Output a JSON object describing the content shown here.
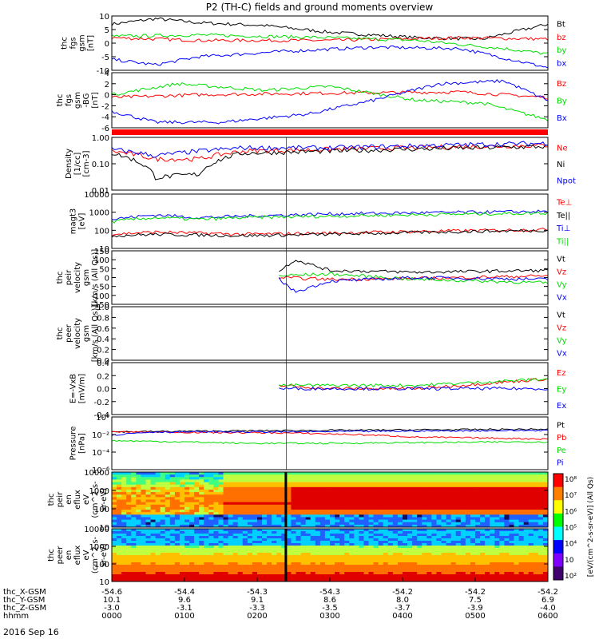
{
  "title": "P2 (TH-C) fields and ground moments overview",
  "date_label": "2016 Sep 16",
  "colors": {
    "black": "#000000",
    "red": "#ff0000",
    "green": "#00dd00",
    "blue": "#0000ff"
  },
  "chart_data": [
    {
      "id": "fgs",
      "type": "line",
      "ylabel": [
        "thc",
        "fgs",
        "gsm",
        "[nT]"
      ],
      "ylim": [
        -10,
        10
      ],
      "ticks": [
        "10",
        "5",
        "0",
        "-5",
        "-10"
      ],
      "tick_values": [
        10,
        5,
        0,
        -5,
        -10
      ],
      "log": false,
      "series": [
        {
          "name": "Bt",
          "color": "#000000",
          "trace": [
            [
              0,
              7
            ],
            [
              0.1,
              9
            ],
            [
              0.2,
              7.5
            ],
            [
              0.35,
              6.5
            ],
            [
              0.5,
              4
            ],
            [
              0.7,
              2
            ],
            [
              0.85,
              1.5
            ],
            [
              1,
              7
            ]
          ]
        },
        {
          "name": "bz",
          "color": "#ff0000",
          "trace": [
            [
              0,
              2
            ],
            [
              0.2,
              1
            ],
            [
              0.5,
              1
            ],
            [
              0.8,
              2
            ],
            [
              1,
              1.5
            ]
          ]
        },
        {
          "name": "by",
          "color": "#00dd00",
          "trace": [
            [
              0,
              2.5
            ],
            [
              0.2,
              3
            ],
            [
              0.5,
              2
            ],
            [
              0.7,
              1
            ],
            [
              0.9,
              -2
            ],
            [
              1,
              -4
            ]
          ]
        },
        {
          "name": "bx",
          "color": "#0000ff",
          "trace": [
            [
              0,
              -6
            ],
            [
              0.1,
              -8
            ],
            [
              0.2,
              -5
            ],
            [
              0.4,
              -3
            ],
            [
              0.6,
              -1.5
            ],
            [
              0.8,
              -2
            ],
            [
              1,
              -9
            ]
          ]
        }
      ]
    },
    {
      "id": "fgs2",
      "type": "line",
      "ylabel": [
        "thc",
        "fgs",
        "gsm",
        "-BG",
        "[nT]"
      ],
      "ylim": [
        -6,
        4
      ],
      "ticks": [
        "4",
        "2",
        "0",
        "-2",
        "-4",
        "-6"
      ],
      "tick_values": [
        4,
        2,
        0,
        -2,
        -4,
        -6
      ],
      "log": false,
      "series": [
        {
          "name": "Bz",
          "color": "#ff0000",
          "trace": [
            [
              0,
              -0.5
            ],
            [
              0.2,
              0
            ],
            [
              0.5,
              0.3
            ],
            [
              0.8,
              0.5
            ],
            [
              1,
              -0.5
            ]
          ]
        },
        {
          "name": "By",
          "color": "#00dd00",
          "trace": [
            [
              0,
              0
            ],
            [
              0.15,
              2
            ],
            [
              0.35,
              0.8
            ],
            [
              0.5,
              1.5
            ],
            [
              0.7,
              -1
            ],
            [
              0.85,
              -1.5
            ],
            [
              1,
              -4.5
            ]
          ]
        },
        {
          "name": "Bx",
          "color": "#0000ff",
          "trace": [
            [
              0,
              -3
            ],
            [
              0.1,
              -5
            ],
            [
              0.25,
              -5
            ],
            [
              0.45,
              -3.5
            ],
            [
              0.6,
              -1
            ],
            [
              0.75,
              2
            ],
            [
              0.9,
              2.5
            ],
            [
              1,
              -1
            ]
          ]
        }
      ]
    },
    {
      "id": "density",
      "type": "line",
      "ylabel": [
        "Density",
        "[1/cc]",
        "[cm-3]"
      ],
      "ylim": [
        0.01,
        1.0
      ],
      "ticks": [
        "1.00",
        "0.10",
        "0.01"
      ],
      "tick_values": [
        1,
        0.1,
        0.01
      ],
      "log": true,
      "series": [
        {
          "name": "Ne",
          "color": "#ff0000",
          "trace": [
            [
              0,
              0.3
            ],
            [
              0.1,
              0.15
            ],
            [
              0.2,
              0.15
            ],
            [
              0.3,
              0.3
            ],
            [
              0.5,
              0.35
            ],
            [
              1,
              0.5
            ]
          ]
        },
        {
          "name": "Ni",
          "color": "#000000",
          "trace": [
            [
              0,
              0.25
            ],
            [
              0.1,
              0.03
            ],
            [
              0.2,
              0.04
            ],
            [
              0.3,
              0.25
            ],
            [
              0.5,
              0.3
            ],
            [
              1,
              0.45
            ]
          ]
        },
        {
          "name": "Npot",
          "color": "#0000ff",
          "trace": [
            [
              0,
              0.35
            ],
            [
              0.1,
              0.2
            ],
            [
              0.3,
              0.4
            ],
            [
              0.5,
              0.4
            ],
            [
              1,
              0.6
            ]
          ]
        }
      ]
    },
    {
      "id": "temp",
      "type": "line",
      "ylabel": [
        "magt3",
        "[eV]"
      ],
      "ylim": [
        10,
        10000
      ],
      "ticks": [
        "10000",
        "1000",
        "100",
        "10"
      ],
      "tick_values": [
        10000,
        1000,
        100,
        10
      ],
      "log": true,
      "series": [
        {
          "name": "Te⊥",
          "color": "#ff0000",
          "trace": [
            [
              0,
              60
            ],
            [
              0.1,
              80
            ],
            [
              0.3,
              60
            ],
            [
              0.5,
              70
            ],
            [
              1,
              110
            ]
          ]
        },
        {
          "name": "Te||",
          "color": "#000000",
          "trace": [
            [
              0,
              50
            ],
            [
              0.1,
              60
            ],
            [
              0.3,
              50
            ],
            [
              0.5,
              60
            ],
            [
              1,
              100
            ]
          ]
        },
        {
          "name": "Ti⊥",
          "color": "#0000ff",
          "trace": [
            [
              0,
              400
            ],
            [
              0.1,
              700
            ],
            [
              0.2,
              500
            ],
            [
              0.3,
              600
            ],
            [
              0.5,
              800
            ],
            [
              1,
              1100
            ]
          ]
        },
        {
          "name": "Ti||",
          "color": "#00dd00",
          "trace": [
            [
              0,
              300
            ],
            [
              0.1,
              500
            ],
            [
              0.2,
              400
            ],
            [
              0.3,
              500
            ],
            [
              0.5,
              600
            ],
            [
              1,
              900
            ]
          ]
        }
      ]
    },
    {
      "id": "peir",
      "type": "line",
      "ylabel": [
        "thc",
        "peir",
        "velocity",
        "gsm",
        "[km/s (All Qs)]"
      ],
      "ylim": [
        -150,
        150
      ],
      "ticks": [
        "150",
        "100",
        "50",
        "0",
        "-50",
        "-100",
        "-150"
      ],
      "tick_values": [
        150,
        100,
        50,
        0,
        -50,
        -100,
        -150
      ],
      "log": false,
      "series": [
        {
          "name": "Vt",
          "color": "#000000",
          "trace": [
            [
              0.38,
              30
            ],
            [
              0.42,
              100
            ],
            [
              0.5,
              40
            ],
            [
              0.7,
              30
            ],
            [
              1,
              40
            ]
          ]
        },
        {
          "name": "Vz",
          "color": "#ff0000",
          "trace": [
            [
              0.38,
              0
            ],
            [
              0.5,
              -10
            ],
            [
              0.7,
              -5
            ],
            [
              1,
              10
            ]
          ]
        },
        {
          "name": "Vy",
          "color": "#00dd00",
          "trace": [
            [
              0.38,
              10
            ],
            [
              0.5,
              20
            ],
            [
              0.7,
              -10
            ],
            [
              1,
              -30
            ]
          ]
        },
        {
          "name": "Vx",
          "color": "#0000ff",
          "trace": [
            [
              0.38,
              0
            ],
            [
              0.42,
              -80
            ],
            [
              0.5,
              -20
            ],
            [
              0.7,
              0
            ],
            [
              1,
              -10
            ]
          ]
        }
      ]
    },
    {
      "id": "peer",
      "type": "line",
      "ylabel": [
        "thc",
        "peer",
        "velocity",
        "gsm",
        "[km/s (All Qs)]"
      ],
      "ylim": [
        0,
        1
      ],
      "ticks": [
        "1.0",
        "0.8",
        "0.6",
        "0.4",
        "0.2",
        "0.0"
      ],
      "tick_values": [
        1,
        0.8,
        0.6,
        0.4,
        0.2,
        0
      ],
      "log": false,
      "series": [
        {
          "name": "Vt",
          "color": "#000000"
        },
        {
          "name": "Vz",
          "color": "#ff0000"
        },
        {
          "name": "Vy",
          "color": "#00dd00"
        },
        {
          "name": "Vx",
          "color": "#0000ff"
        }
      ]
    },
    {
      "id": "efield",
      "type": "line",
      "ylabel": [
        "E=-VxB",
        "[mV/m]"
      ],
      "ylim": [
        -0.4,
        0.4
      ],
      "ticks": [
        "0.4",
        "0.2",
        "0.0",
        "-0.2",
        "-0.4"
      ],
      "tick_values": [
        0.4,
        0.2,
        0,
        -0.2,
        -0.4
      ],
      "log": false,
      "series": [
        {
          "name": "Ez",
          "color": "#ff0000",
          "trace": [
            [
              0.38,
              0.05
            ],
            [
              0.5,
              0
            ],
            [
              0.7,
              0
            ],
            [
              1,
              0.15
            ]
          ]
        },
        {
          "name": "Ey",
          "color": "#00dd00",
          "trace": [
            [
              0.38,
              0.05
            ],
            [
              0.5,
              0.05
            ],
            [
              0.7,
              0.05
            ],
            [
              1,
              0.15
            ]
          ]
        },
        {
          "name": "Ex",
          "color": "#0000ff",
          "trace": [
            [
              0.38,
              0
            ],
            [
              0.5,
              0
            ],
            [
              0.7,
              0
            ],
            [
              1,
              0
            ]
          ]
        }
      ]
    },
    {
      "id": "pressure",
      "type": "line",
      "ylabel": [
        "Pressure",
        "[nPa]"
      ],
      "ylim": [
        1e-06,
        1
      ],
      "ticks": [
        "10⁰",
        "10⁻²",
        "10⁻⁴",
        "10⁻⁶"
      ],
      "tick_values": [
        1,
        0.01,
        0.0001,
        1e-06
      ],
      "log": true,
      "series": [
        {
          "name": "Pt",
          "color": "#000000",
          "trace": [
            [
              0,
              0.02
            ],
            [
              0.5,
              0.03
            ],
            [
              1,
              0.04
            ]
          ]
        },
        {
          "name": "Pb",
          "color": "#ff0000",
          "trace": [
            [
              0,
              0.02
            ],
            [
              0.4,
              0.015
            ],
            [
              0.7,
              0.005
            ],
            [
              1,
              0.003
            ]
          ]
        },
        {
          "name": "Pe",
          "color": "#00dd00",
          "trace": [
            [
              0,
              0.002
            ],
            [
              0.3,
              0.001
            ],
            [
              0.5,
              0.001
            ],
            [
              1,
              0.0015
            ]
          ]
        },
        {
          "name": "Pi",
          "color": "#0000ff",
          "trace": [
            [
              0,
              0.008
            ],
            [
              0.1,
              0.02
            ],
            [
              0.4,
              0.02
            ],
            [
              1,
              0.03
            ]
          ]
        }
      ]
    },
    {
      "id": "peir_spec",
      "type": "heatmap",
      "ylabel": [
        "thc",
        "peir",
        "en",
        "eflux",
        "eV",
        "(cm^2-s-",
        "sr-eV)"
      ],
      "ylim": [
        10,
        10000
      ],
      "ticks": [
        "10000",
        "1000",
        "100",
        "10"
      ],
      "tick_values": [
        10000,
        1000,
        100,
        10
      ],
      "log": true
    },
    {
      "id": "peer_spec",
      "type": "heatmap",
      "ylabel": [
        "thc",
        "peer",
        "en",
        "eflux",
        "eV",
        "(cm^2-s-",
        "sr-eV)"
      ],
      "ylim": [
        10,
        10000
      ],
      "ticks": [
        "10000",
        "1000",
        "100",
        "10"
      ],
      "tick_values": [
        10000,
        1000,
        100,
        10
      ],
      "log": true
    }
  ],
  "colorbar": {
    "title": "[eV/(cm^2-s-sr-eV)] (All Qs)",
    "ticks": [
      "10⁸",
      "10⁷",
      "10⁶",
      "10⁵",
      "10⁴",
      "10⁳",
      "10²"
    ],
    "colors": [
      "#ffffff",
      "#ff0000",
      "#ff8000",
      "#ffff00",
      "#00ff00",
      "#00ffff",
      "#0000ff",
      "#8000ff",
      "#000000"
    ]
  },
  "xaxis": {
    "rows": [
      {
        "label": "thc_X-GSM",
        "values": [
          "-54.6",
          "-54.4",
          "-54.3",
          "-54.3",
          "-54.2",
          "-54.2",
          "-54.2"
        ]
      },
      {
        "label": "thc_Y-GSM",
        "values": [
          "10.1",
          "9.6",
          "9.1",
          "8.6",
          "8.0",
          "7.5",
          "6.9"
        ]
      },
      {
        "label": "thc_Z-GSM",
        "values": [
          "-3.0",
          "-3.1",
          "-3.3",
          "-3.5",
          "-3.7",
          "-3.9",
          "-4.0"
        ]
      },
      {
        "label": "hhmm",
        "values": [
          "0000",
          "0100",
          "0200",
          "0300",
          "0400",
          "0500",
          "0600"
        ]
      }
    ]
  }
}
